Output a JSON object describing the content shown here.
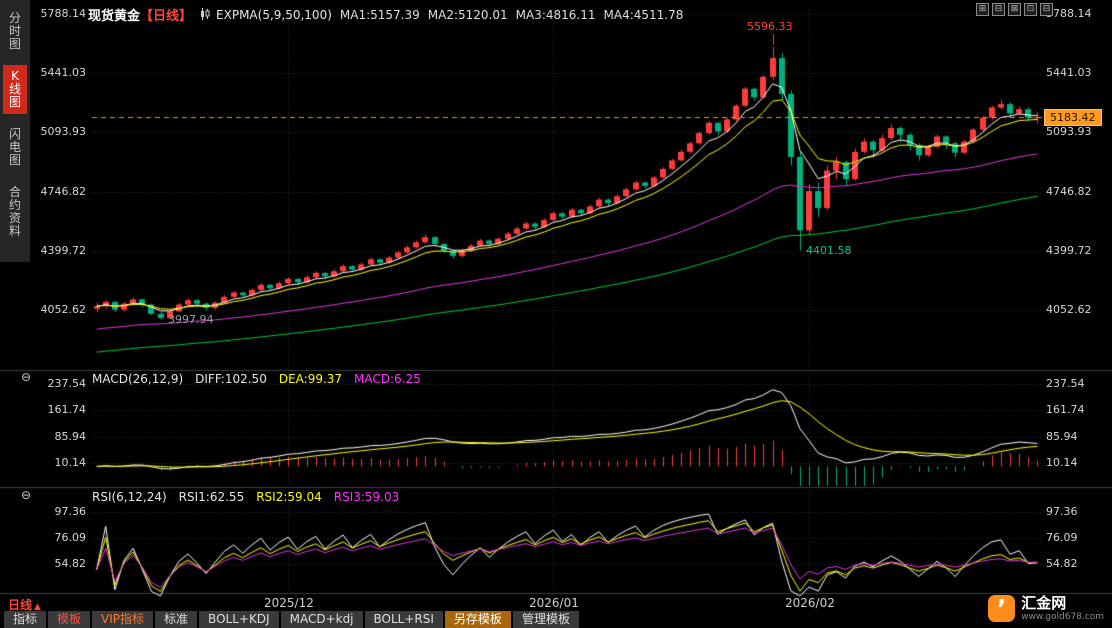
{
  "header": {
    "symbol": "现货黄金",
    "period": "【日线】",
    "expma_label": "EXPMA(5,9,50,100)",
    "ma_values": [
      {
        "name": "MA1",
        "label": "MA1:5157.39",
        "color": "#e6e6e6"
      },
      {
        "name": "MA2",
        "label": "MA2:5120.01",
        "color": "#ffff00"
      },
      {
        "name": "MA3",
        "label": "MA3:4816.11",
        "color": "#ff30ff"
      },
      {
        "name": "MA4",
        "label": "MA4:4511.78",
        "color": "#00d83c"
      }
    ]
  },
  "window_controls": [
    "⊞",
    "⊟",
    "⊠",
    "⊡",
    "⊟"
  ],
  "sidebar": {
    "items": [
      {
        "label": "分时图",
        "active": false
      },
      {
        "label": "K线图",
        "active": true
      },
      {
        "label": "闪电图",
        "active": false
      },
      {
        "label": "合约资料",
        "active": false
      }
    ]
  },
  "macd_panel": {
    "title": "MACD(26,12,9)",
    "diff": "DIFF:102.50",
    "dea": "DEA:99.37",
    "macd": "MACD:6.25"
  },
  "rsi_panel": {
    "title": "RSI(6,12,24)",
    "rsi1": "RSI1:62.55",
    "rsi2": "RSI2:59.04",
    "rsi3": "RSI3:59.03"
  },
  "bottom_bar": {
    "period": "日线",
    "tabs": [
      {
        "label": "指标",
        "variant": "default"
      },
      {
        "label": "模板",
        "variant": "red-text"
      },
      {
        "label": "VIP指标",
        "variant": "orange-text"
      },
      {
        "label": "标准",
        "variant": "default"
      },
      {
        "label": "BOLL+KDJ",
        "variant": "default"
      },
      {
        "label": "MACD+kdj",
        "variant": "default"
      },
      {
        "label": "BOLL+RSI",
        "variant": "default"
      },
      {
        "label": "另存模板",
        "variant": "orange-bg"
      },
      {
        "label": "管理模板",
        "variant": "default"
      }
    ]
  },
  "logo": {
    "name": "汇金网",
    "url": "www.gold678.com"
  },
  "chart_data": {
    "type": "candlestick",
    "title": "现货黄金 日线",
    "price_axis": {
      "labels": [
        "5788.14",
        "5441.03",
        "5093.93",
        "4746.82",
        "4399.72",
        "4052.62"
      ],
      "values": [
        5788.14,
        5441.03,
        5093.93,
        4746.82,
        4399.72,
        4052.62
      ]
    },
    "macd_axis": {
      "labels": [
        "237.54",
        "161.74",
        "85.94",
        "10.14"
      ],
      "values": [
        237.54,
        161.74,
        85.94,
        10.14
      ]
    },
    "rsi_axis": {
      "labels": [
        "97.36",
        "76.09",
        "54.82"
      ],
      "values": [
        97.36,
        76.09,
        54.82
      ]
    },
    "x_dates": [
      {
        "label": "2025/12",
        "index": 21
      },
      {
        "label": "2026/01",
        "index": 50
      },
      {
        "label": "2026/02",
        "index": 78
      }
    ],
    "annotations": {
      "peak": {
        "text": "5596.33",
        "index": 74
      },
      "trough": {
        "text": "4401.58",
        "index": 77
      },
      "early_low": {
        "text": "3997.94",
        "index": 7
      }
    },
    "current_price": "5183.42",
    "expma_periods": [
      5,
      9,
      50,
      100
    ],
    "macd_params": [
      26,
      12,
      9
    ],
    "rsi_params": [
      6,
      12,
      24
    ],
    "colors": {
      "up": "#ff3c3c",
      "down": "#00b07d",
      "ma1": "#ffffff",
      "ma2": "#ffff00",
      "ma3": "#e038e0",
      "ma4": "#00cc33",
      "macd_diff": "#ffffff",
      "macd_dea": "#ffff00",
      "rsi1": "#ffffff",
      "rsi2": "#ffff00",
      "rsi3": "#e038e0",
      "price_line": "#ff9500",
      "grid": "#2d2d2d"
    },
    "candles": [
      [
        4060,
        4095,
        4040,
        4075
      ],
      [
        4075,
        4110,
        4060,
        4100
      ],
      [
        4100,
        4105,
        4040,
        4055
      ],
      [
        4055,
        4100,
        4045,
        4090
      ],
      [
        4090,
        4125,
        4080,
        4115
      ],
      [
        4115,
        4120,
        4068,
        4085
      ],
      [
        4085,
        4090,
        4022,
        4030
      ],
      [
        4030,
        4042,
        3997.94,
        4005
      ],
      [
        4005,
        4056,
        4000,
        4045
      ],
      [
        4045,
        4094,
        4040,
        4085
      ],
      [
        4085,
        4120,
        4078,
        4110
      ],
      [
        4110,
        4116,
        4072,
        4090
      ],
      [
        4090,
        4096,
        4050,
        4065
      ],
      [
        4065,
        4104,
        4056,
        4095
      ],
      [
        4095,
        4140,
        4088,
        4130
      ],
      [
        4130,
        4164,
        4122,
        4155
      ],
      [
        4155,
        4160,
        4126,
        4140
      ],
      [
        4140,
        4180,
        4132,
        4170
      ],
      [
        4170,
        4210,
        4162,
        4200
      ],
      [
        4200,
        4206,
        4166,
        4180
      ],
      [
        4180,
        4220,
        4172,
        4210
      ],
      [
        4210,
        4244,
        4202,
        4235
      ],
      [
        4235,
        4240,
        4198,
        4215
      ],
      [
        4215,
        4256,
        4206,
        4245
      ],
      [
        4245,
        4280,
        4236,
        4270
      ],
      [
        4270,
        4276,
        4234,
        4250
      ],
      [
        4250,
        4290,
        4242,
        4280
      ],
      [
        4280,
        4320,
        4272,
        4310
      ],
      [
        4310,
        4316,
        4276,
        4290
      ],
      [
        4290,
        4330,
        4282,
        4320
      ],
      [
        4320,
        4360,
        4312,
        4350
      ],
      [
        4350,
        4356,
        4314,
        4330
      ],
      [
        4330,
        4370,
        4322,
        4360
      ],
      [
        4360,
        4400,
        4352,
        4390
      ],
      [
        4390,
        4430,
        4382,
        4420
      ],
      [
        4420,
        4460,
        4412,
        4450
      ],
      [
        4450,
        4496,
        4442,
        4480
      ],
      [
        4480,
        4486,
        4424,
        4440
      ],
      [
        4440,
        4446,
        4386,
        4400
      ],
      [
        4400,
        4406,
        4354,
        4370
      ],
      [
        4370,
        4412,
        4362,
        4400
      ],
      [
        4400,
        4440,
        4392,
        4430
      ],
      [
        4430,
        4470,
        4422,
        4460
      ],
      [
        4460,
        4466,
        4424,
        4440
      ],
      [
        4440,
        4480,
        4432,
        4470
      ],
      [
        4470,
        4510,
        4462,
        4500
      ],
      [
        4500,
        4540,
        4492,
        4530
      ],
      [
        4530,
        4570,
        4522,
        4560
      ],
      [
        4560,
        4566,
        4524,
        4540
      ],
      [
        4540,
        4590,
        4532,
        4580
      ],
      [
        4580,
        4630,
        4572,
        4620
      ],
      [
        4620,
        4626,
        4584,
        4600
      ],
      [
        4600,
        4650,
        4592,
        4640
      ],
      [
        4640,
        4646,
        4604,
        4620
      ],
      [
        4620,
        4670,
        4612,
        4660
      ],
      [
        4660,
        4710,
        4652,
        4700
      ],
      [
        4700,
        4706,
        4664,
        4680
      ],
      [
        4680,
        4730,
        4672,
        4720
      ],
      [
        4720,
        4770,
        4712,
        4760
      ],
      [
        4760,
        4810,
        4752,
        4800
      ],
      [
        4800,
        4806,
        4764,
        4780
      ],
      [
        4780,
        4840,
        4772,
        4830
      ],
      [
        4830,
        4890,
        4822,
        4880
      ],
      [
        4880,
        4940,
        4872,
        4930
      ],
      [
        4930,
        4990,
        4922,
        4980
      ],
      [
        4980,
        5040,
        4972,
        5030
      ],
      [
        5030,
        5100,
        5022,
        5090
      ],
      [
        5090,
        5160,
        5082,
        5150
      ],
      [
        5150,
        5156,
        5078,
        5100
      ],
      [
        5100,
        5180,
        5092,
        5170
      ],
      [
        5170,
        5260,
        5162,
        5250
      ],
      [
        5250,
        5360,
        5242,
        5350
      ],
      [
        5350,
        5356,
        5278,
        5300
      ],
      [
        5300,
        5430,
        5292,
        5420
      ],
      [
        5420,
        5596.33,
        5400,
        5530
      ],
      [
        5530,
        5560,
        5280,
        5320
      ],
      [
        5320,
        5340,
        4900,
        4950
      ],
      [
        4950,
        4980,
        4401.58,
        4520
      ],
      [
        4520,
        4790,
        4500,
        4750
      ],
      [
        4750,
        4800,
        4598,
        4650
      ],
      [
        4650,
        4900,
        4640,
        4870
      ],
      [
        4870,
        4950,
        4820,
        4920
      ],
      [
        4920,
        4930,
        4780,
        4820
      ],
      [
        4820,
        5000,
        4810,
        4980
      ],
      [
        4980,
        5060,
        4970,
        5040
      ],
      [
        5040,
        5050,
        4948,
        4990
      ],
      [
        4990,
        5080,
        4980,
        5060
      ],
      [
        5060,
        5140,
        5050,
        5120
      ],
      [
        5120,
        5130,
        5038,
        5080
      ],
      [
        5080,
        5090,
        4988,
        5020
      ],
      [
        5020,
        5030,
        4928,
        4960
      ],
      [
        4960,
        5020,
        4950,
        5010
      ],
      [
        5010,
        5080,
        5000,
        5070
      ],
      [
        5070,
        5076,
        4998,
        5030
      ],
      [
        5030,
        5040,
        4948,
        4975
      ],
      [
        4975,
        5050,
        4965,
        5040
      ],
      [
        5040,
        5120,
        5030,
        5110
      ],
      [
        5110,
        5190,
        5100,
        5180
      ],
      [
        5180,
        5250,
        5170,
        5240
      ],
      [
        5240,
        5286,
        5230,
        5260
      ],
      [
        5260,
        5270,
        5178,
        5205
      ],
      [
        5205,
        5246,
        5194,
        5230
      ],
      [
        5230,
        5240,
        5158,
        5180
      ],
      [
        5180,
        5212,
        5148,
        5183.42
      ]
    ]
  }
}
